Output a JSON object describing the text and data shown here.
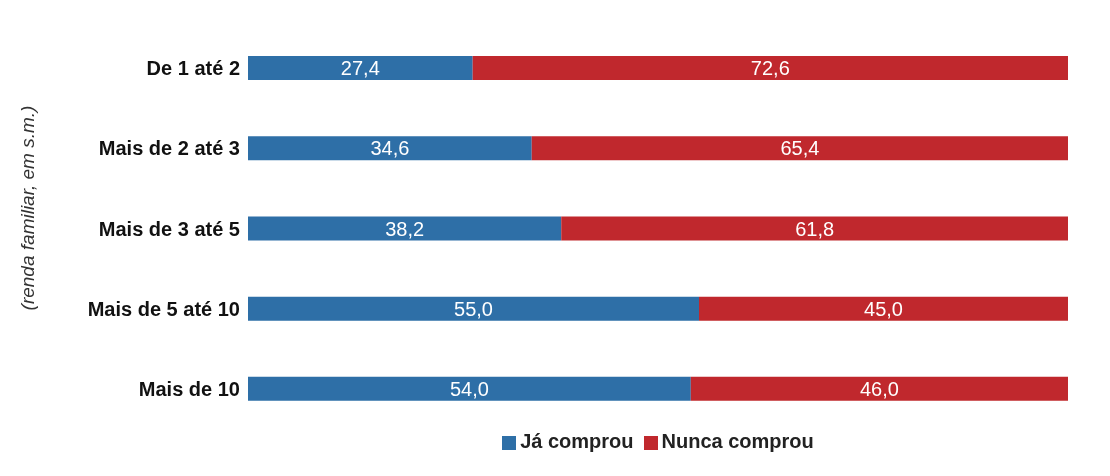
{
  "chart_data": {
    "type": "bar",
    "orientation": "horizontal",
    "stacked": true,
    "ylabel": "(renda familiar, em s.m.)",
    "categories": [
      "De 1 até 2",
      "Mais de 2 até 3",
      "Mais de 3 até 5",
      "Mais de 5 até 10",
      "Mais de 10"
    ],
    "series": [
      {
        "name": "Já comprou",
        "color": "#2e6fa7",
        "values": [
          27.4,
          34.6,
          38.2,
          55.0,
          54.0
        ],
        "value_labels": [
          "27,4",
          "34,6",
          "38,2",
          "55,0",
          "54,0"
        ]
      },
      {
        "name": "Nunca comprou",
        "color": "#c0282d",
        "values": [
          72.6,
          65.4,
          61.8,
          45.0,
          46.0
        ],
        "value_labels": [
          "72,6",
          "65,4",
          "61,8",
          "45,0",
          "46,0"
        ]
      }
    ],
    "tick_labels": "y",
    "legend": "bottom"
  }
}
